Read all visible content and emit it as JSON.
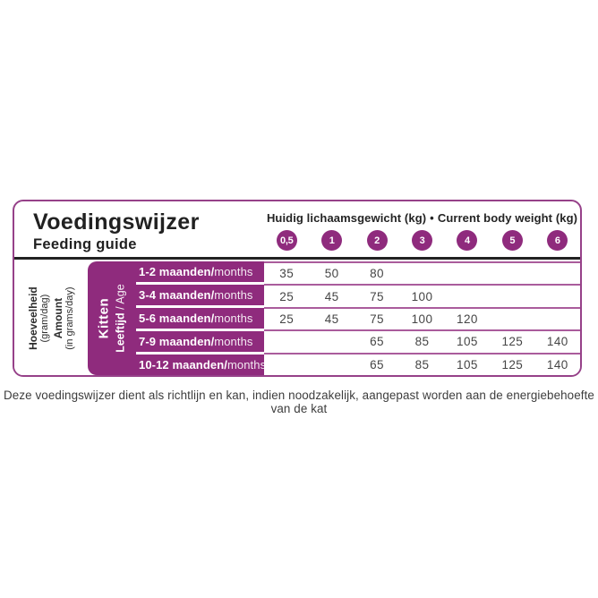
{
  "colors": {
    "accent_purple": "#8f2b7d",
    "border_purple": "#964189",
    "row_line_pink": "#aa5c9c",
    "divider_black": "#222222"
  },
  "header": {
    "title": "Voedingswijzer",
    "subtitle": "Feeding guide",
    "weight_header_nl": "Huidig lichaamsgewicht (kg)",
    "weight_header_sep": "•",
    "weight_header_en": "Current body weight (kg)",
    "weights": [
      "0,5",
      "1",
      "2",
      "3",
      "4",
      "5",
      "6"
    ]
  },
  "side": {
    "amount_nl": "Hoeveelheid",
    "amount_nl_sub": "(gram/dag)",
    "amount_en": "Amount",
    "amount_en_sub": "(in grams/day)",
    "category": "Kitten",
    "age_bold": "Leeftijd",
    "age_light": " / Age"
  },
  "table": {
    "rows": [
      {
        "age_bold": "1-2 maanden/",
        "age_light": "months",
        "values": [
          "35",
          "50",
          "80",
          "",
          "",
          "",
          ""
        ]
      },
      {
        "age_bold": "3-4 maanden/",
        "age_light": "months",
        "values": [
          "25",
          "45",
          "75",
          "100",
          "",
          "",
          ""
        ]
      },
      {
        "age_bold": "5-6 maanden/",
        "age_light": "months",
        "values": [
          "25",
          "45",
          "75",
          "100",
          "120",
          "",
          ""
        ]
      },
      {
        "age_bold": "7-9 maanden/",
        "age_light": "months",
        "values": [
          "",
          "",
          "65",
          "85",
          "105",
          "125",
          "140"
        ]
      },
      {
        "age_bold": "10-12 maanden/",
        "age_light": "months",
        "values": [
          "",
          "",
          "65",
          "85",
          "105",
          "125",
          "140"
        ]
      }
    ]
  },
  "footer": {
    "note": "Deze voedingswijzer dient als richtlijn en kan, indien noodzakelijk, aangepast worden aan de energiebehoefte van de kat"
  }
}
